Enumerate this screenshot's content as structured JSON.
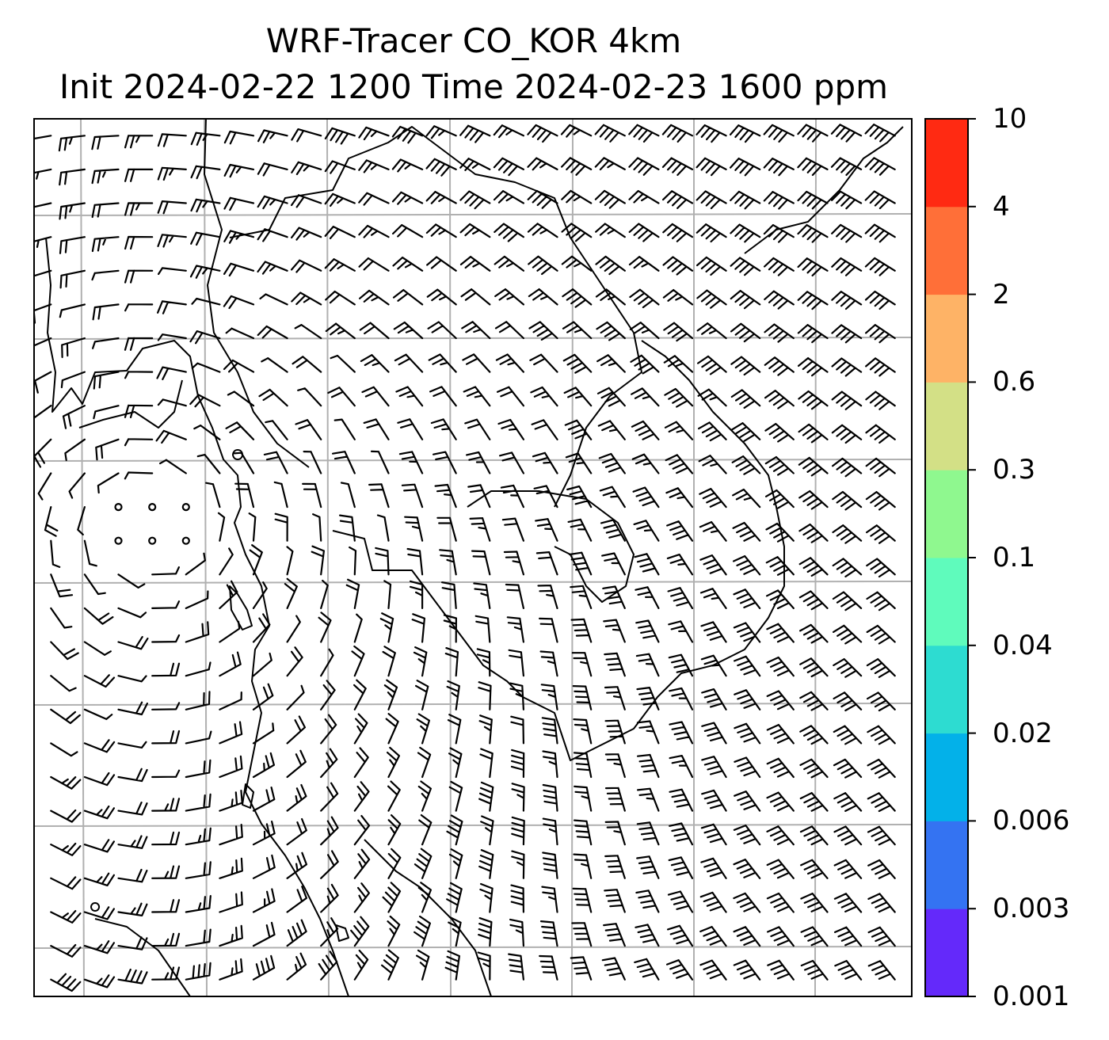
{
  "title": {
    "line1": "WRF-Tracer CO_KOR 4km",
    "line2": "Init 2024-02-22 1200 Time 2024-02-23 1600 ppm"
  },
  "colorbar": {
    "levels": [
      {
        "label": "0.001",
        "color": "#6429fa"
      },
      {
        "label": "0.003",
        "color": "#3473f2"
      },
      {
        "label": "0.006",
        "color": "#03b1e9"
      },
      {
        "label": "0.02",
        "color": "#2ddcd1"
      },
      {
        "label": "0.04",
        "color": "#5ffbbc"
      },
      {
        "label": "0.1",
        "color": "#8ff88f"
      },
      {
        "label": "0.3",
        "color": "#d3e086"
      },
      {
        "label": "0.6",
        "color": "#feb366"
      },
      {
        "label": "2",
        "color": "#ff6f38"
      },
      {
        "label": "4",
        "color": "#ff2a12"
      },
      {
        "label": "10",
        "color": null
      }
    ]
  },
  "map": {
    "gridlines": "on",
    "wind_barbs": "on",
    "tracer_shading": "none visible"
  }
}
